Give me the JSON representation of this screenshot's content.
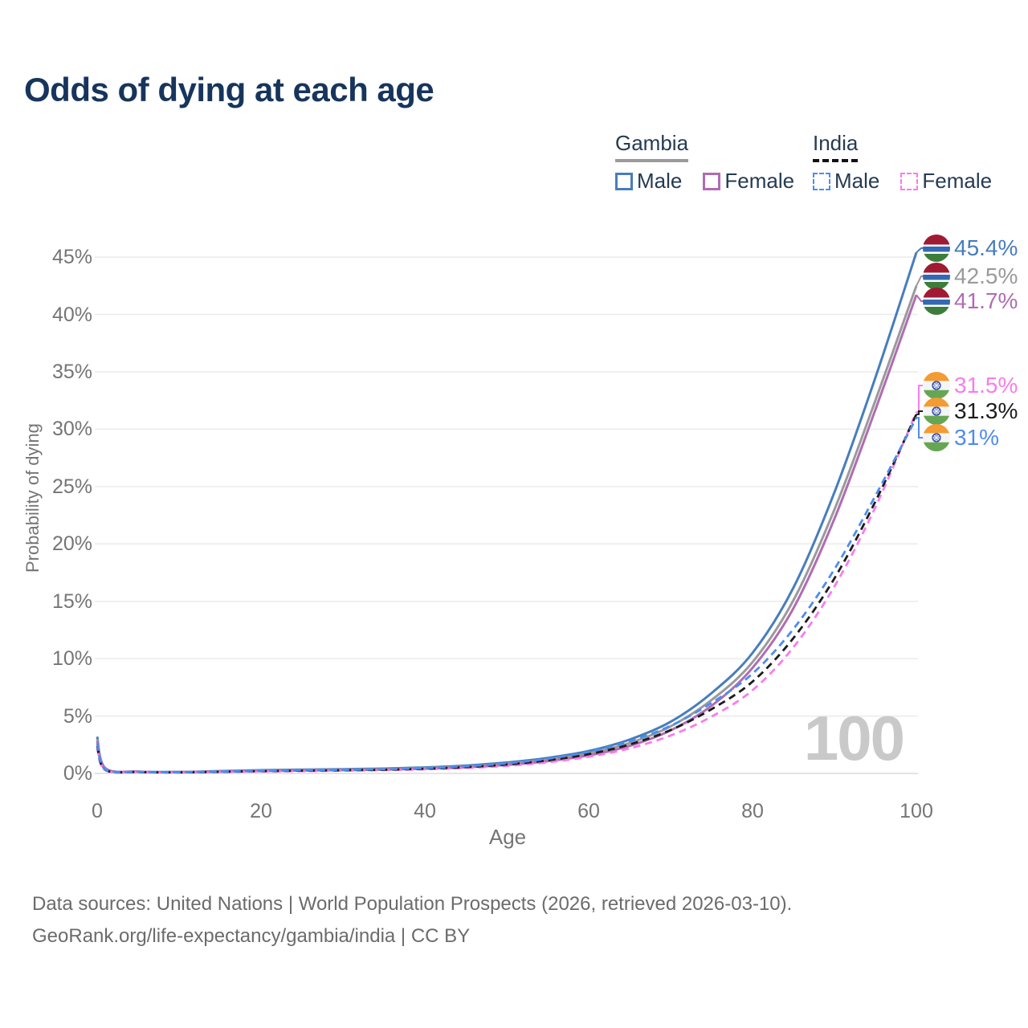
{
  "title": "Odds of dying at each age",
  "watermark": "100",
  "legend": {
    "gambia_title": "Gambia",
    "india_title": "India",
    "gambia_male": "Male",
    "gambia_female": "Female",
    "india_male": "Male",
    "india_female": "Female"
  },
  "axes": {
    "x_label": "Age",
    "y_label": "Probability of dying",
    "x_ticks": [
      0,
      20,
      40,
      60,
      80,
      100
    ],
    "y_ticks": [
      "0%",
      "5%",
      "10%",
      "15%",
      "20%",
      "25%",
      "30%",
      "35%",
      "40%",
      "45%"
    ]
  },
  "sources": {
    "line1": "Data sources: United Nations | World Population Prospects (2026, retrieved 2026-03-10).",
    "line2": "GeoRank.org/life-expectancy/gambia/india | CC BY"
  },
  "flags": {
    "gambia": {
      "red": "#a01a33",
      "white": "#ffffff",
      "blue": "#3468b2",
      "green": "#3c7d3c"
    },
    "india": {
      "saffron": "#f49b33",
      "white": "#f5f5f5",
      "green": "#66a653",
      "chakra": "#2440a8"
    }
  },
  "chart_data": {
    "type": "line",
    "title": "Odds of dying at each age",
    "xlabel": "Age",
    "ylabel": "Probability of dying",
    "xlim": [
      0,
      100
    ],
    "ylim_pct": [
      0,
      45
    ],
    "grid": "horizontal-5pct",
    "legend_position": "top-right",
    "current_age_indicator": 100,
    "ages": [
      0,
      1,
      5,
      10,
      15,
      20,
      25,
      30,
      35,
      40,
      45,
      50,
      55,
      60,
      65,
      70,
      75,
      80,
      85,
      90,
      95,
      100
    ],
    "series": [
      {
        "name": "Gambia Male",
        "country": "Gambia",
        "sex": "male",
        "color": "#477dbe",
        "dash": false,
        "flag": "gambia",
        "end_label": "45.4%",
        "end_value": 45.4,
        "values": [
          3.2,
          0.45,
          0.16,
          0.13,
          0.2,
          0.28,
          0.33,
          0.37,
          0.42,
          0.52,
          0.68,
          0.95,
          1.35,
          1.95,
          2.95,
          4.5,
          7.0,
          10.5,
          16.2,
          24.5,
          34.5,
          45.4
        ]
      },
      {
        "name": "Gambia Both sexes",
        "country": "Gambia",
        "sex": "both",
        "color": "#9a9a9a",
        "dash": false,
        "flag": "gambia",
        "end_label": "42.5%",
        "end_value": 42.5,
        "values": [
          3.0,
          0.42,
          0.15,
          0.12,
          0.17,
          0.24,
          0.29,
          0.33,
          0.37,
          0.46,
          0.6,
          0.84,
          1.2,
          1.75,
          2.65,
          4.1,
          6.4,
          9.7,
          15.1,
          23.0,
          32.5,
          42.5
        ]
      },
      {
        "name": "Gambia Female",
        "country": "Gambia",
        "sex": "female",
        "color": "#b06cb3",
        "dash": false,
        "flag": "gambia",
        "end_label": "41.7%",
        "end_value": 41.7,
        "values": [
          2.8,
          0.4,
          0.14,
          0.11,
          0.15,
          0.21,
          0.25,
          0.29,
          0.33,
          0.41,
          0.53,
          0.74,
          1.07,
          1.57,
          2.4,
          3.75,
          5.9,
          9.2,
          14.4,
          22.2,
          31.7,
          41.7
        ]
      },
      {
        "name": "India Female",
        "country": "India",
        "sex": "female",
        "color": "#f97ceb",
        "dash": true,
        "flag": "india",
        "end_label": "31.5%",
        "end_value": 31.5,
        "values": [
          2.2,
          0.28,
          0.11,
          0.08,
          0.12,
          0.17,
          0.2,
          0.24,
          0.28,
          0.36,
          0.47,
          0.66,
          0.97,
          1.45,
          2.18,
          3.3,
          4.95,
          7.25,
          11.0,
          16.3,
          23.2,
          31.5
        ]
      },
      {
        "name": "India Both sexes",
        "country": "India",
        "sex": "both",
        "color": "#1c1c1c",
        "dash": true,
        "flag": "india",
        "end_label": "31.3%",
        "end_value": 31.3,
        "values": [
          2.4,
          0.3,
          0.12,
          0.09,
          0.14,
          0.2,
          0.24,
          0.28,
          0.32,
          0.41,
          0.55,
          0.78,
          1.14,
          1.68,
          2.52,
          3.78,
          5.6,
          8.0,
          11.8,
          17.0,
          23.7,
          31.3
        ]
      },
      {
        "name": "India Male",
        "country": "India",
        "sex": "male",
        "color": "#4e8cf0",
        "dash": true,
        "flag": "india",
        "end_label": "31%",
        "end_value": 31.0,
        "values": [
          2.6,
          0.32,
          0.13,
          0.1,
          0.16,
          0.22,
          0.27,
          0.31,
          0.36,
          0.46,
          0.62,
          0.88,
          1.28,
          1.88,
          2.8,
          4.15,
          6.15,
          8.7,
          12.6,
          17.8,
          24.2,
          31.0
        ]
      }
    ]
  }
}
